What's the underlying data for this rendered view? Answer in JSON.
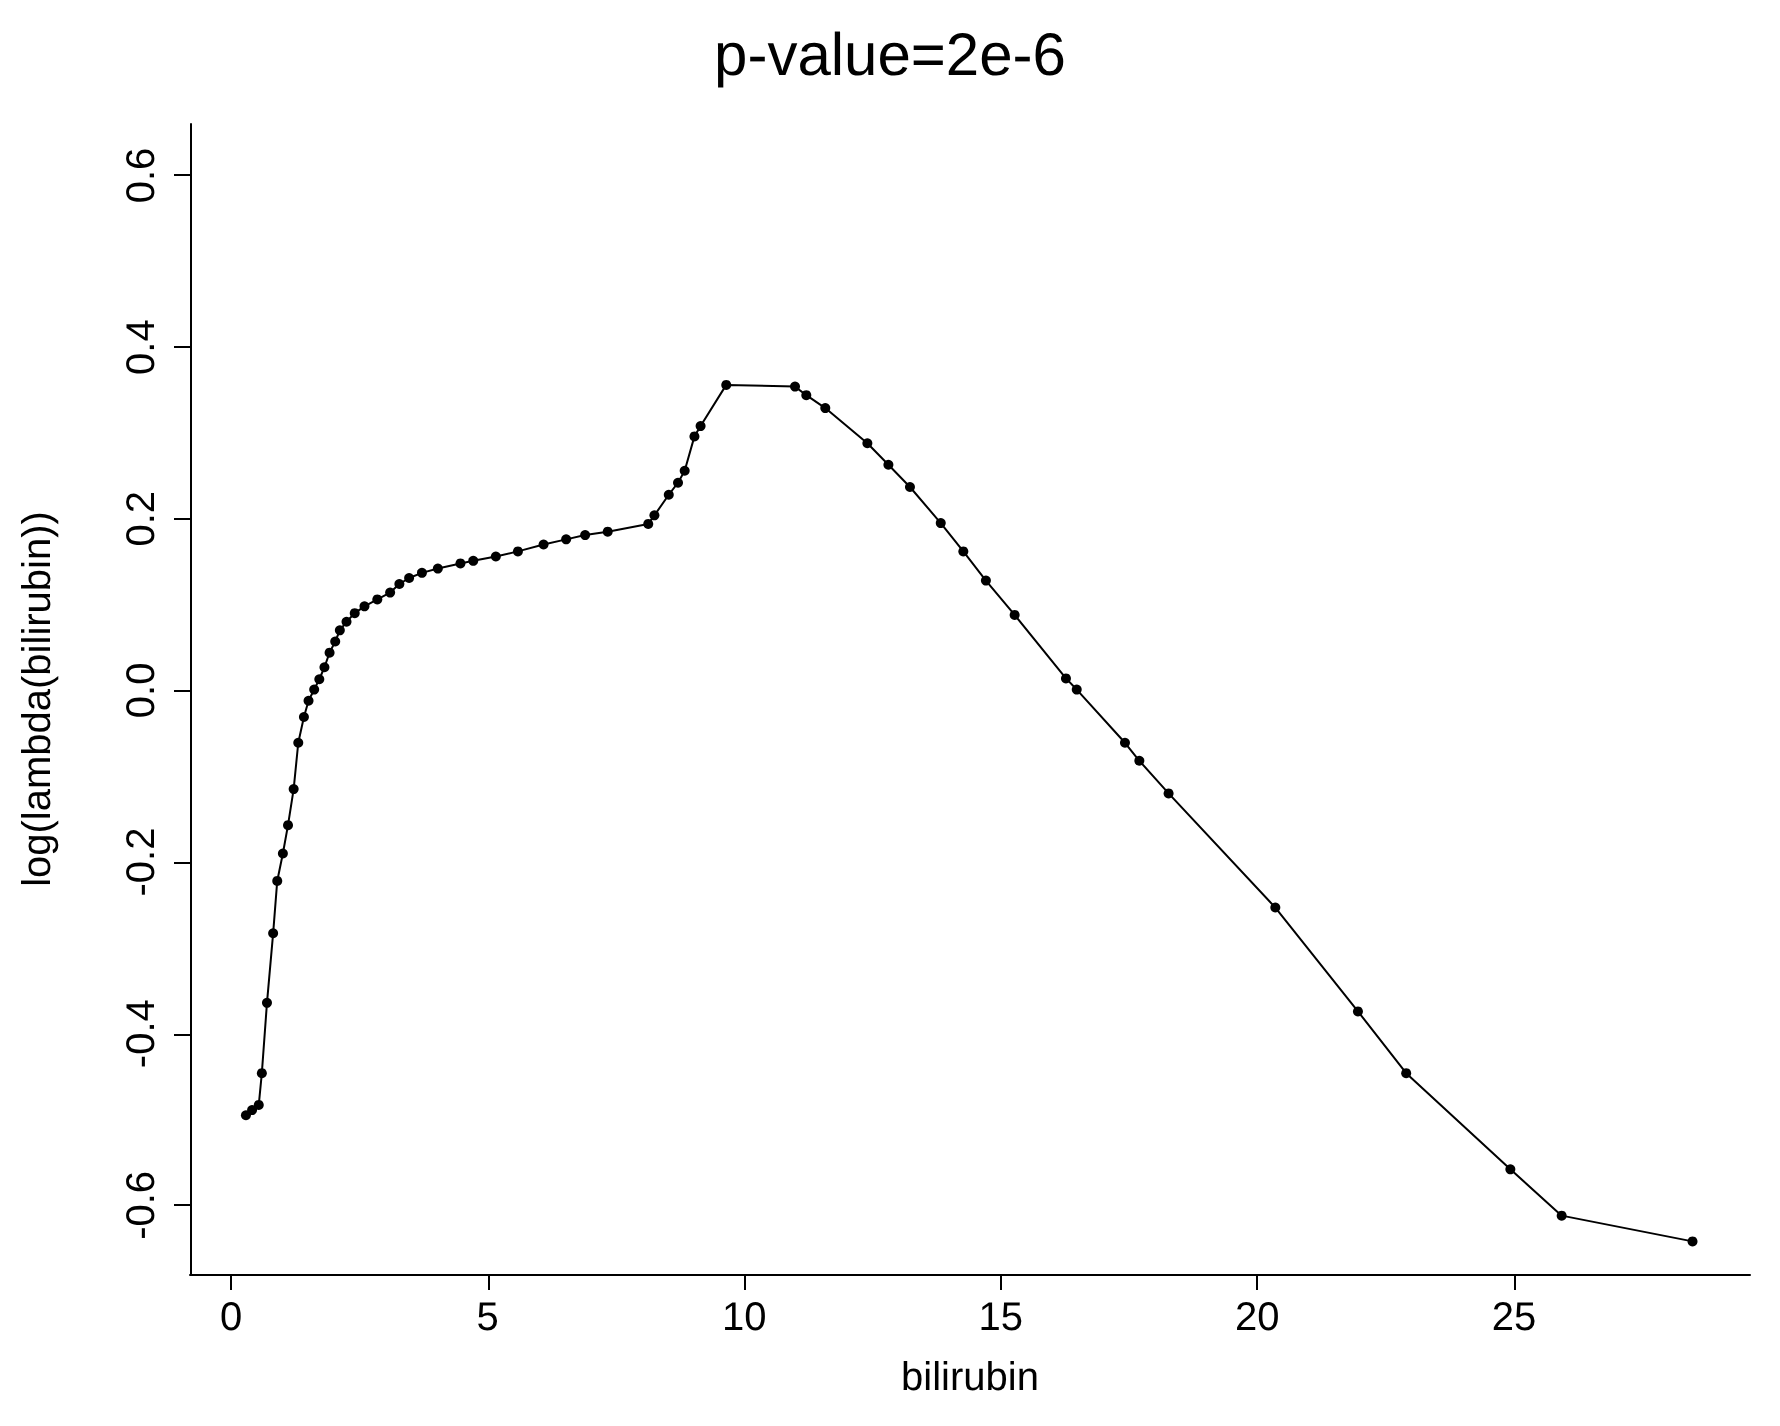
{
  "chart_data": {
    "type": "line",
    "title": "p-value=2e-6",
    "xlabel": "bilirubin",
    "ylabel": "log(lambda(bilirubin))",
    "x": [
      0.29,
      0.41,
      0.54,
      0.6,
      0.7,
      0.82,
      0.9,
      1.01,
      1.11,
      1.22,
      1.31,
      1.42,
      1.51,
      1.62,
      1.72,
      1.82,
      1.92,
      2.03,
      2.12,
      2.25,
      2.41,
      2.6,
      2.85,
      3.1,
      3.28,
      3.47,
      3.72,
      4.03,
      4.47,
      4.72,
      5.16,
      5.59,
      6.09,
      6.53,
      6.9,
      7.34,
      8.13,
      8.25,
      8.53,
      8.71,
      8.84,
      9.03,
      9.15,
      9.65,
      10.99,
      11.21,
      11.58,
      12.4,
      12.81,
      13.23,
      13.83,
      14.27,
      14.71,
      15.27,
      16.27,
      16.48,
      17.42,
      17.7,
      18.27,
      20.35,
      21.96,
      22.9,
      24.93,
      25.93,
      28.48
    ],
    "series": [
      {
        "color": "#000000",
        "values": [
          -0.495,
          -0.489,
          -0.483,
          -0.446,
          -0.364,
          -0.283,
          -0.222,
          -0.19,
          -0.157,
          -0.115,
          -0.061,
          -0.031,
          -0.012,
          0.001,
          0.013,
          0.027,
          0.044,
          0.057,
          0.07,
          0.08,
          0.09,
          0.098,
          0.106,
          0.114,
          0.124,
          0.131,
          0.137,
          0.142,
          0.148,
          0.151,
          0.156,
          0.162,
          0.17,
          0.176,
          0.181,
          0.185,
          0.194,
          0.204,
          0.228,
          0.242,
          0.256,
          0.296,
          0.308,
          0.356,
          0.354,
          0.344,
          0.329,
          0.288,
          0.263,
          0.237,
          0.195,
          0.162,
          0.128,
          0.088,
          0.014,
          0.001,
          -0.061,
          -0.082,
          -0.12,
          -0.253,
          -0.374,
          -0.446,
          -0.558,
          -0.612,
          -0.642
        ]
      }
    ],
    "xlim": [
      -0.8,
      29.6
    ],
    "xticks": [
      0,
      5,
      10,
      15,
      20,
      25
    ],
    "ylim": [
      -0.68,
      0.66
    ],
    "yticks": [
      {
        "value": -0.6,
        "label": "-0.6"
      },
      {
        "value": -0.4,
        "label": "-0.4"
      },
      {
        "value": -0.2,
        "label": "-0.2"
      },
      {
        "value": 0,
        "label": "0.0"
      },
      {
        "value": 0.2,
        "label": "0.2"
      },
      {
        "value": 0.4,
        "label": "0.4"
      },
      {
        "value": 0.6,
        "label": "0.6"
      }
    ],
    "marker": "circle",
    "line_style": "solid",
    "grid": false
  }
}
